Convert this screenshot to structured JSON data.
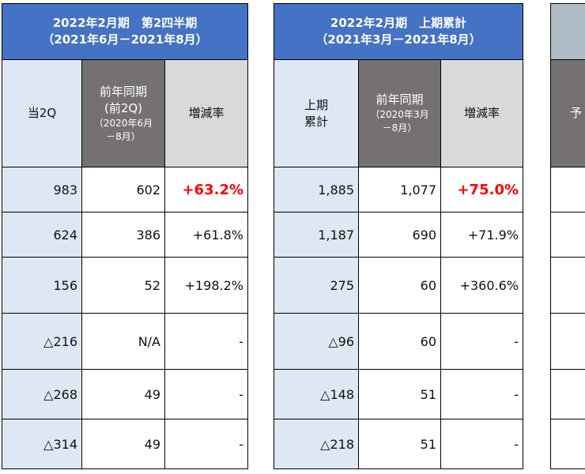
{
  "q2": {
    "title_line1": "2022年2月期　第2四半期",
    "title_line2": "（2021年6月－2021年8月）",
    "col_current": "当2Q",
    "col_prev_line1": "前年同期",
    "col_prev_line2": "(前2Q)",
    "col_prev_sub1": "（2020年6月",
    "col_prev_sub2": "－8月）",
    "col_rate": "増減率",
    "rows": [
      {
        "current": "983",
        "prev": "602",
        "rate": "+63.2%"
      },
      {
        "current": "624",
        "prev": "386",
        "rate": "+61.8%"
      },
      {
        "current": "156",
        "prev": "52",
        "rate": "+198.2%"
      },
      {
        "current": "△216",
        "prev": "N/A",
        "rate": "-"
      },
      {
        "current": "△268",
        "prev": "49",
        "rate": "-"
      },
      {
        "current": "△314",
        "prev": "49",
        "rate": "-"
      }
    ]
  },
  "h1": {
    "title_line1": "2022年2月期　上期累計",
    "title_line2": "（2021年3月－2021年8月）",
    "col_current_line1": "上期",
    "col_current_line2": "累計",
    "col_prev_line1": "前年同期",
    "col_prev_sub1": "（2020年3月",
    "col_prev_sub2": "－8月）",
    "col_rate": "増減率",
    "rows": [
      {
        "current": "1,885",
        "prev": "1,077",
        "rate": "+75.0%"
      },
      {
        "current": "1,187",
        "prev": "690",
        "rate": "+71.9%"
      },
      {
        "current": "275",
        "prev": "60",
        "rate": "+360.6%"
      },
      {
        "current": "△96",
        "prev": "60",
        "rate": "-"
      },
      {
        "current": "△148",
        "prev": "51",
        "rate": "-"
      },
      {
        "current": "△218",
        "prev": "51",
        "rate": "-"
      }
    ]
  },
  "forecast": {
    "col_label_partial": "予"
  },
  "colors": {
    "title_blue": "#4472c4",
    "title_gray": "#aebcc6",
    "current_fill": "#dde8f4",
    "prev_header_fill": "#767171",
    "rate_header_fill": "#d9d9d9",
    "highlight_red": "#ff0000"
  }
}
